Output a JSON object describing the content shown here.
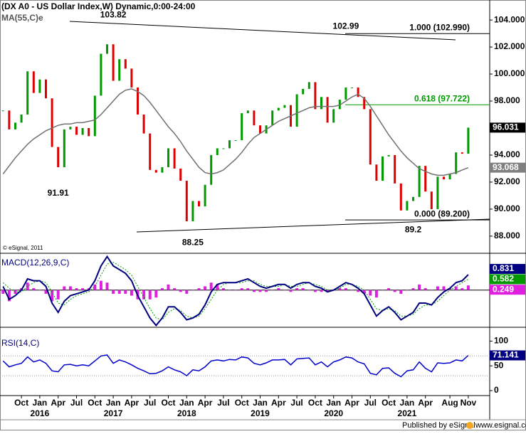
{
  "chart_data": [
    {
      "type": "price",
      "title": "(DX A0 - US Dollar Index,W) Dynamic,0:00-24:00",
      "subtitle": "MA(55,C)e",
      "credit": "© eSignal, 2011",
      "xlim": [
        -0.5,
        79.5
      ],
      "xticks": [
        {
          "value": 3,
          "label": "Oct"
        },
        {
          "value": 6,
          "label": "Jan"
        },
        {
          "value": 9,
          "label": "Apr"
        },
        {
          "value": 12,
          "label": "Jul"
        },
        {
          "value": 15,
          "label": "Oct"
        },
        {
          "value": 18,
          "label": "Jan"
        },
        {
          "value": 21,
          "label": "Apr"
        },
        {
          "value": 24,
          "label": "Jul"
        },
        {
          "value": 27,
          "label": "Oct"
        },
        {
          "value": 30,
          "label": "Jan"
        },
        {
          "value": 33,
          "label": "Apr"
        },
        {
          "value": 36,
          "label": "Jul"
        },
        {
          "value": 39,
          "label": "Oct"
        },
        {
          "value": 42,
          "label": "Jan"
        },
        {
          "value": 45,
          "label": "Apr"
        },
        {
          "value": 48,
          "label": "Jul"
        },
        {
          "value": 51,
          "label": "Oct"
        },
        {
          "value": 54,
          "label": "Jan"
        },
        {
          "value": 57,
          "label": "Apr"
        },
        {
          "value": 60,
          "label": "Jul"
        },
        {
          "value": 63,
          "label": "Oct"
        },
        {
          "value": 66,
          "label": "Jan"
        },
        {
          "value": 69,
          "label": "Apr"
        },
        {
          "value": 73,
          "label": "Aug"
        },
        {
          "value": 76,
          "label": "Nov"
        }
      ],
      "year_ticks": [
        {
          "value": 6,
          "label": "2016"
        },
        {
          "value": 18,
          "label": "2017"
        },
        {
          "value": 30,
          "label": "2018"
        },
        {
          "value": 42,
          "label": "2019"
        },
        {
          "value": 54,
          "label": "2020"
        },
        {
          "value": 66,
          "label": "2021"
        }
      ],
      "ylim": [
        86.73,
        105.48
      ],
      "yticks": [
        {
          "value": 88,
          "label": "88.000"
        },
        {
          "value": 90,
          "label": "90.000"
        },
        {
          "value": 92,
          "label": "92.000"
        },
        {
          "value": 94,
          "label": "94.000"
        },
        {
          "value": 96,
          "label": "96.000"
        },
        {
          "value": 98,
          "label": "98.000"
        },
        {
          "value": 100,
          "label": "100.000"
        },
        {
          "value": 102,
          "label": "102.000"
        },
        {
          "value": 104,
          "label": "104.000"
        }
      ],
      "up_color": "#009900",
      "down_color": "#dd0000",
      "last_color": "#000000",
      "series": [
        {
          "color": "#009900",
          "values": [
            97.3,
            95.9,
            96.4,
            97.0,
            100.2,
            98.6,
            99.6,
            98.2,
            94.6,
            93.1,
            95.9,
            96.1,
            95.5,
            96.0,
            95.4,
            98.4,
            101.5,
            102.2,
            99.5,
            101.1,
            100.4,
            99.0,
            97.0,
            95.6,
            92.9,
            92.7,
            93.1,
            94.5,
            93.0,
            92.1,
            89.1,
            90.6,
            90.2,
            91.8,
            94.0,
            94.5,
            94.5,
            95.1,
            95.1,
            97.1,
            97.3,
            96.2,
            95.6,
            96.2,
            97.3,
            97.5,
            97.7,
            96.1,
            98.5,
            98.9,
            99.4,
            97.4,
            98.3,
            96.4,
            97.4,
            98.1,
            99.0,
            99.0,
            98.3,
            97.4,
            93.3,
            92.1,
            93.9,
            94.0,
            91.9,
            89.9,
            90.6,
            90.9,
            93.2,
            91.3,
            90.0,
            92.4,
            92.2,
            92.6,
            94.2,
            94.1,
            96.031
          ]
        },
        {
          "color": "#707070",
          "values": [
            92.6,
            93.2,
            93.8,
            94.3,
            94.8,
            95.2,
            95.5,
            95.8,
            96.0,
            96.2,
            96.3,
            96.3,
            96.4,
            96.4,
            96.5,
            96.6,
            97.0,
            97.5,
            98.0,
            98.5,
            98.8,
            98.9,
            98.7,
            98.4,
            97.9,
            97.3,
            96.7,
            96.1,
            95.6,
            95.0,
            94.3,
            93.7,
            93.1,
            92.7,
            92.6,
            92.7,
            92.9,
            93.3,
            93.7,
            94.2,
            94.8,
            95.3,
            95.6,
            95.9,
            96.2,
            96.5,
            96.7,
            96.9,
            97.1,
            97.3,
            97.5,
            97.6,
            97.6,
            97.6,
            97.6,
            97.7,
            98.0,
            98.3,
            98.5,
            98.2,
            97.6,
            96.9,
            96.2,
            95.5,
            94.9,
            94.3,
            93.8,
            93.4,
            93.0,
            92.8,
            92.6,
            92.5,
            92.5,
            92.6,
            92.7,
            92.9,
            93.068
          ]
        }
      ],
      "annotations": [
        {
          "x": 18,
          "value": 103.82,
          "placement": "above"
        },
        {
          "x": 56,
          "value": 102.99,
          "placement": "above"
        },
        {
          "x": 9,
          "value": 91.91,
          "placement": "below"
        },
        {
          "x": 31,
          "value": 88.25,
          "placement": "below"
        },
        {
          "x": 67,
          "value": 89.2,
          "placement": "below"
        }
      ],
      "levels": [
        {
          "value": 102.99,
          "label": "1.000 (102.990)",
          "color": "#000000"
        },
        {
          "value": 97.722,
          "label": "0.618 (97.722)",
          "color": "#009900"
        },
        {
          "value": 89.2,
          "label": "0.000 (89.200)",
          "color": "#000000"
        }
      ]
    },
    {
      "type": "macd",
      "title": "MACD(12,26,9,C)",
      "ylim": [
        -2,
        1.9
      ],
      "yticks": [
        0
      ],
      "series": [
        {
          "color": "#000080",
          "values": [
            0.2,
            -0.5,
            -0.3,
            0.0,
            0.6,
            0.5,
            0.5,
            0.2,
            -0.7,
            -1.2,
            -0.6,
            -0.3,
            -0.2,
            -0.1,
            0.0,
            0.5,
            1.3,
            1.8,
            1.3,
            1.1,
            0.9,
            0.5,
            -0.3,
            -0.9,
            -1.5,
            -1.9,
            -1.5,
            -0.9,
            -0.9,
            -1.2,
            -1.6,
            -1.5,
            -1.3,
            -0.8,
            -0.1,
            0.3,
            0.4,
            0.4,
            0.4,
            0.5,
            0.6,
            0.4,
            0.2,
            0.1,
            0.2,
            0.3,
            0.3,
            0.1,
            0.3,
            0.4,
            0.4,
            0.2,
            0.1,
            -0.1,
            0.0,
            0.2,
            0.4,
            0.3,
            0.1,
            -0.2,
            -0.8,
            -1.4,
            -1.1,
            -0.9,
            -1.2,
            -1.6,
            -1.4,
            -1.2,
            -0.7,
            -0.7,
            -0.8,
            -0.4,
            -0.1,
            0.1,
            0.4,
            0.5,
            0.831
          ]
        },
        {
          "color": "#009900",
          "values": [
            0.4,
            0.1,
            -0.1,
            -0.1,
            0.2,
            0.4,
            0.5,
            0.4,
            -0.1,
            -0.7,
            -0.8,
            -0.5,
            -0.3,
            -0.2,
            -0.1,
            0.2,
            0.8,
            1.4,
            1.5,
            1.3,
            1.1,
            0.8,
            0.2,
            -0.4,
            -1.0,
            -1.5,
            -1.6,
            -1.2,
            -1.0,
            -1.1,
            -1.4,
            -1.5,
            -1.4,
            -1.0,
            -0.5,
            0.0,
            0.3,
            0.4,
            0.4,
            0.4,
            0.5,
            0.5,
            0.3,
            0.2,
            0.2,
            0.2,
            0.3,
            0.2,
            0.2,
            0.3,
            0.4,
            0.3,
            0.2,
            0.0,
            0.0,
            0.1,
            0.3,
            0.3,
            0.2,
            0.0,
            -0.5,
            -1.0,
            -1.1,
            -1.0,
            -1.1,
            -1.4,
            -1.4,
            -1.3,
            -1.0,
            -0.8,
            -0.8,
            -0.6,
            -0.3,
            0.0,
            0.2,
            0.4,
            0.582
          ]
        },
        {
          "color": "#e020e0",
          "values": [
            -0.2,
            -0.6,
            -0.2,
            0.1,
            0.4,
            0.1,
            0.0,
            -0.2,
            -0.6,
            -0.5,
            0.2,
            0.2,
            0.1,
            0.1,
            0.1,
            0.3,
            0.5,
            0.4,
            -0.2,
            -0.2,
            -0.2,
            -0.3,
            -0.5,
            -0.5,
            -0.5,
            -0.4,
            0.1,
            0.3,
            0.1,
            -0.1,
            -0.2,
            0.0,
            0.1,
            0.2,
            0.4,
            0.3,
            0.1,
            0.0,
            0.0,
            0.1,
            0.1,
            -0.1,
            -0.1,
            -0.1,
            0.0,
            0.1,
            0.0,
            -0.1,
            0.1,
            0.1,
            0.0,
            -0.1,
            -0.1,
            -0.1,
            0.0,
            0.1,
            0.1,
            0.0,
            -0.1,
            -0.2,
            -0.3,
            -0.4,
            0.0,
            0.1,
            -0.1,
            -0.2,
            0.0,
            0.1,
            0.3,
            0.1,
            0.0,
            0.2,
            0.2,
            0.1,
            0.2,
            0.1,
            0.249
          ]
        }
      ]
    },
    {
      "type": "line",
      "title": "RSI(14,C)",
      "ylim": [
        -10,
        125
      ],
      "yticks": [
        0,
        50,
        100
      ],
      "guides": [
        30,
        70
      ],
      "series": [
        {
          "color": "#0000cc",
          "values": [
            60,
            48,
            52,
            55,
            68,
            58,
            62,
            55,
            40,
            38,
            52,
            53,
            50,
            52,
            50,
            60,
            70,
            72,
            55,
            62,
            58,
            52,
            45,
            40,
            34,
            35,
            40,
            48,
            42,
            38,
            30,
            42,
            40,
            48,
            60,
            62,
            60,
            63,
            62,
            68,
            66,
            55,
            52,
            56,
            62,
            62,
            63,
            52,
            64,
            65,
            66,
            52,
            58,
            48,
            58,
            62,
            68,
            66,
            58,
            54,
            35,
            32,
            45,
            46,
            35,
            28,
            40,
            42,
            58,
            45,
            38,
            56,
            55,
            56,
            62,
            60,
            71.141
          ]
        }
      ]
    }
  ],
  "footer": {
    "left": "Published by eSignal",
    "right": "www.esignal.com"
  }
}
